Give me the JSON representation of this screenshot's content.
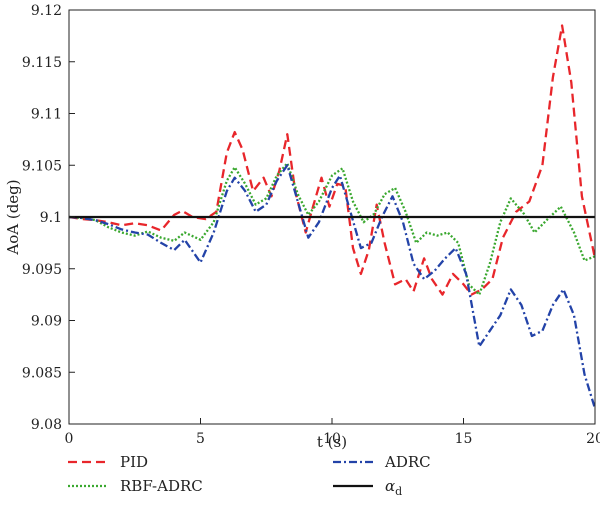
{
  "chart_data": {
    "type": "line",
    "xlabel": "t (s)",
    "ylabel": "AoA (deg)",
    "xlim": [
      0,
      20
    ],
    "ylim": [
      9.08,
      9.12
    ],
    "x_ticks": [
      "0",
      "5",
      "10",
      "15",
      "20"
    ],
    "y_ticks": [
      "9.08",
      "9.085",
      "9.09",
      "9.095",
      "9.1",
      "9.105",
      "9.11",
      "9.115",
      "9.12"
    ],
    "grid": false,
    "legend_position": "bottom",
    "series": [
      {
        "name": "PID",
        "color": "#e8262b",
        "style": "dashed",
        "points": [
          [
            0,
            9.1
          ],
          [
            0.5,
            9.0998
          ],
          [
            1,
            9.0997
          ],
          [
            1.5,
            9.0995
          ],
          [
            2,
            9.0992
          ],
          [
            2.5,
            9.0994
          ],
          [
            3,
            9.0992
          ],
          [
            3.5,
            9.0987
          ],
          [
            4,
            9.1002
          ],
          [
            4.3,
            9.1006
          ],
          [
            4.7,
            9.1
          ],
          [
            5.2,
            9.0998
          ],
          [
            5.6,
            9.1005
          ],
          [
            6,
            9.1062
          ],
          [
            6.3,
            9.1082
          ],
          [
            6.6,
            9.1065
          ],
          [
            7,
            9.1025
          ],
          [
            7.4,
            9.1038
          ],
          [
            7.7,
            9.102
          ],
          [
            8,
            9.1045
          ],
          [
            8.3,
            9.108
          ],
          [
            8.6,
            9.1025
          ],
          [
            9,
            9.0985
          ],
          [
            9.3,
            9.1012
          ],
          [
            9.6,
            9.1038
          ],
          [
            9.9,
            9.101
          ],
          [
            10.2,
            9.1032
          ],
          [
            10.5,
            9.103
          ],
          [
            10.8,
            9.097
          ],
          [
            11.1,
            9.0945
          ],
          [
            11.4,
            9.0968
          ],
          [
            11.7,
            9.1012
          ],
          [
            12,
            9.0975
          ],
          [
            12.4,
            9.0935
          ],
          [
            12.8,
            9.094
          ],
          [
            13.1,
            9.0928
          ],
          [
            13.5,
            9.096
          ],
          [
            13.8,
            9.094
          ],
          [
            14.2,
            9.0925
          ],
          [
            14.6,
            9.0945
          ],
          [
            15,
            9.0935
          ],
          [
            15.3,
            9.0925
          ],
          [
            15.7,
            9.093
          ],
          [
            16.1,
            9.094
          ],
          [
            16.5,
            9.098
          ],
          [
            17,
            9.1005
          ],
          [
            17.5,
            9.1015
          ],
          [
            18,
            9.105
          ],
          [
            18.4,
            9.1135
          ],
          [
            18.75,
            9.1185
          ],
          [
            19.1,
            9.113
          ],
          [
            19.5,
            9.102
          ],
          [
            20,
            9.096
          ]
        ]
      },
      {
        "name": "RBF-ADRC",
        "color": "#3aa82f",
        "style": "dotted",
        "points": [
          [
            0,
            9.1
          ],
          [
            0.5,
            9.0999
          ],
          [
            1,
            9.0997
          ],
          [
            1.5,
            9.099
          ],
          [
            2,
            9.0985
          ],
          [
            2.5,
            9.0982
          ],
          [
            3,
            9.0986
          ],
          [
            3.5,
            9.098
          ],
          [
            4,
            9.0977
          ],
          [
            4.4,
            9.0985
          ],
          [
            5,
            9.0978
          ],
          [
            5.5,
            9.0995
          ],
          [
            6,
            9.1035
          ],
          [
            6.3,
            9.1048
          ],
          [
            6.7,
            9.1032
          ],
          [
            7.1,
            9.1012
          ],
          [
            7.5,
            9.1018
          ],
          [
            7.9,
            9.104
          ],
          [
            8.3,
            9.1052
          ],
          [
            8.7,
            9.1022
          ],
          [
            9.1,
            9.1002
          ],
          [
            9.5,
            9.1015
          ],
          [
            10,
            9.104
          ],
          [
            10.4,
            9.1047
          ],
          [
            10.8,
            9.1015
          ],
          [
            11.2,
            9.0995
          ],
          [
            11.6,
            9.1003
          ],
          [
            12,
            9.1022
          ],
          [
            12.4,
            9.1028
          ],
          [
            12.8,
            9.1005
          ],
          [
            13.2,
            9.0975
          ],
          [
            13.6,
            9.0985
          ],
          [
            14,
            9.0982
          ],
          [
            14.4,
            9.0985
          ],
          [
            14.8,
            9.0975
          ],
          [
            15.2,
            9.0935
          ],
          [
            15.6,
            9.0925
          ],
          [
            16,
            9.0955
          ],
          [
            16.4,
            9.0995
          ],
          [
            16.8,
            9.1018
          ],
          [
            17.3,
            9.1003
          ],
          [
            17.7,
            9.0985
          ],
          [
            18.2,
            9.0998
          ],
          [
            18.7,
            9.101
          ],
          [
            19.2,
            9.0985
          ],
          [
            19.6,
            9.0958
          ],
          [
            20,
            9.0962
          ]
        ]
      },
      {
        "name": "ADRC",
        "color": "#2343a8",
        "style": "dashdot",
        "points": [
          [
            0,
            9.1
          ],
          [
            0.5,
            9.0999
          ],
          [
            1,
            9.0997
          ],
          [
            1.5,
            9.0993
          ],
          [
            2,
            9.0988
          ],
          [
            2.5,
            9.0985
          ],
          [
            3,
            9.0983
          ],
          [
            3.5,
            9.0975
          ],
          [
            4,
            9.0968
          ],
          [
            4.4,
            9.0978
          ],
          [
            5,
            9.0956
          ],
          [
            5.5,
            9.0985
          ],
          [
            6,
            9.1025
          ],
          [
            6.3,
            9.1038
          ],
          [
            6.7,
            9.1025
          ],
          [
            7.1,
            9.1005
          ],
          [
            7.5,
            9.1012
          ],
          [
            7.9,
            9.1035
          ],
          [
            8.3,
            9.105
          ],
          [
            8.7,
            9.1015
          ],
          [
            9.1,
            9.098
          ],
          [
            9.5,
            9.0995
          ],
          [
            10,
            9.1028
          ],
          [
            10.3,
            9.104
          ],
          [
            10.7,
            9.1005
          ],
          [
            11.1,
            9.097
          ],
          [
            11.5,
            9.0975
          ],
          [
            11.9,
            9.1
          ],
          [
            12.3,
            9.102
          ],
          [
            12.7,
            9.0995
          ],
          [
            13.1,
            9.0955
          ],
          [
            13.5,
            9.094
          ],
          [
            13.9,
            9.0948
          ],
          [
            14.3,
            9.096
          ],
          [
            14.7,
            9.097
          ],
          [
            15.1,
            9.0945
          ],
          [
            15.6,
            9.0875
          ],
          [
            16,
            9.089
          ],
          [
            16.4,
            9.0905
          ],
          [
            16.8,
            9.093
          ],
          [
            17.2,
            9.0915
          ],
          [
            17.6,
            9.0885
          ],
          [
            18,
            9.089
          ],
          [
            18.4,
            9.0915
          ],
          [
            18.8,
            9.093
          ],
          [
            19.2,
            9.0905
          ],
          [
            19.6,
            9.0848
          ],
          [
            20,
            9.0815
          ]
        ]
      },
      {
        "name": "α",
        "name_subscript": "d",
        "color": "#111111",
        "style": "solid",
        "points": [
          [
            0,
            9.1
          ],
          [
            20,
            9.1
          ]
        ]
      }
    ]
  }
}
